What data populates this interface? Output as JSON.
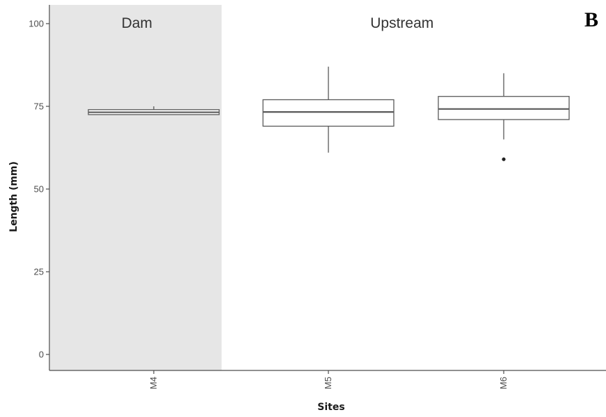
{
  "panel_letter": "B",
  "chart_data": {
    "type": "boxplot",
    "xlabel": "Sites",
    "ylabel": "Length (mm)",
    "ylim": [
      0,
      100
    ],
    "yticks": [
      0,
      25,
      50,
      75,
      100
    ],
    "categories": [
      "M4",
      "M5",
      "M6"
    ],
    "boxes": [
      {
        "category": "M4",
        "min": 72.5,
        "q1": 72.5,
        "median": 73.2,
        "q3": 74,
        "max": 75,
        "outliers": []
      },
      {
        "category": "M5",
        "min": 61,
        "q1": 69,
        "median": 73.3,
        "q3": 77,
        "max": 87,
        "outliers": []
      },
      {
        "category": "M6",
        "min": 65,
        "q1": 71,
        "median": 74.2,
        "q3": 78,
        "max": 85,
        "outliers": [
          59
        ]
      }
    ],
    "regions": [
      {
        "label": "Dam",
        "categories": [
          "M4"
        ],
        "fill": "#e6e6e6"
      },
      {
        "label": "Upstream",
        "categories": [
          "M5",
          "M6"
        ],
        "fill": "#ffffff"
      }
    ],
    "grid": false,
    "colors": {
      "box_fill": "#ffffff",
      "box_stroke": "#595959",
      "median": "#595959",
      "axis": "#4d4d4d"
    }
  }
}
